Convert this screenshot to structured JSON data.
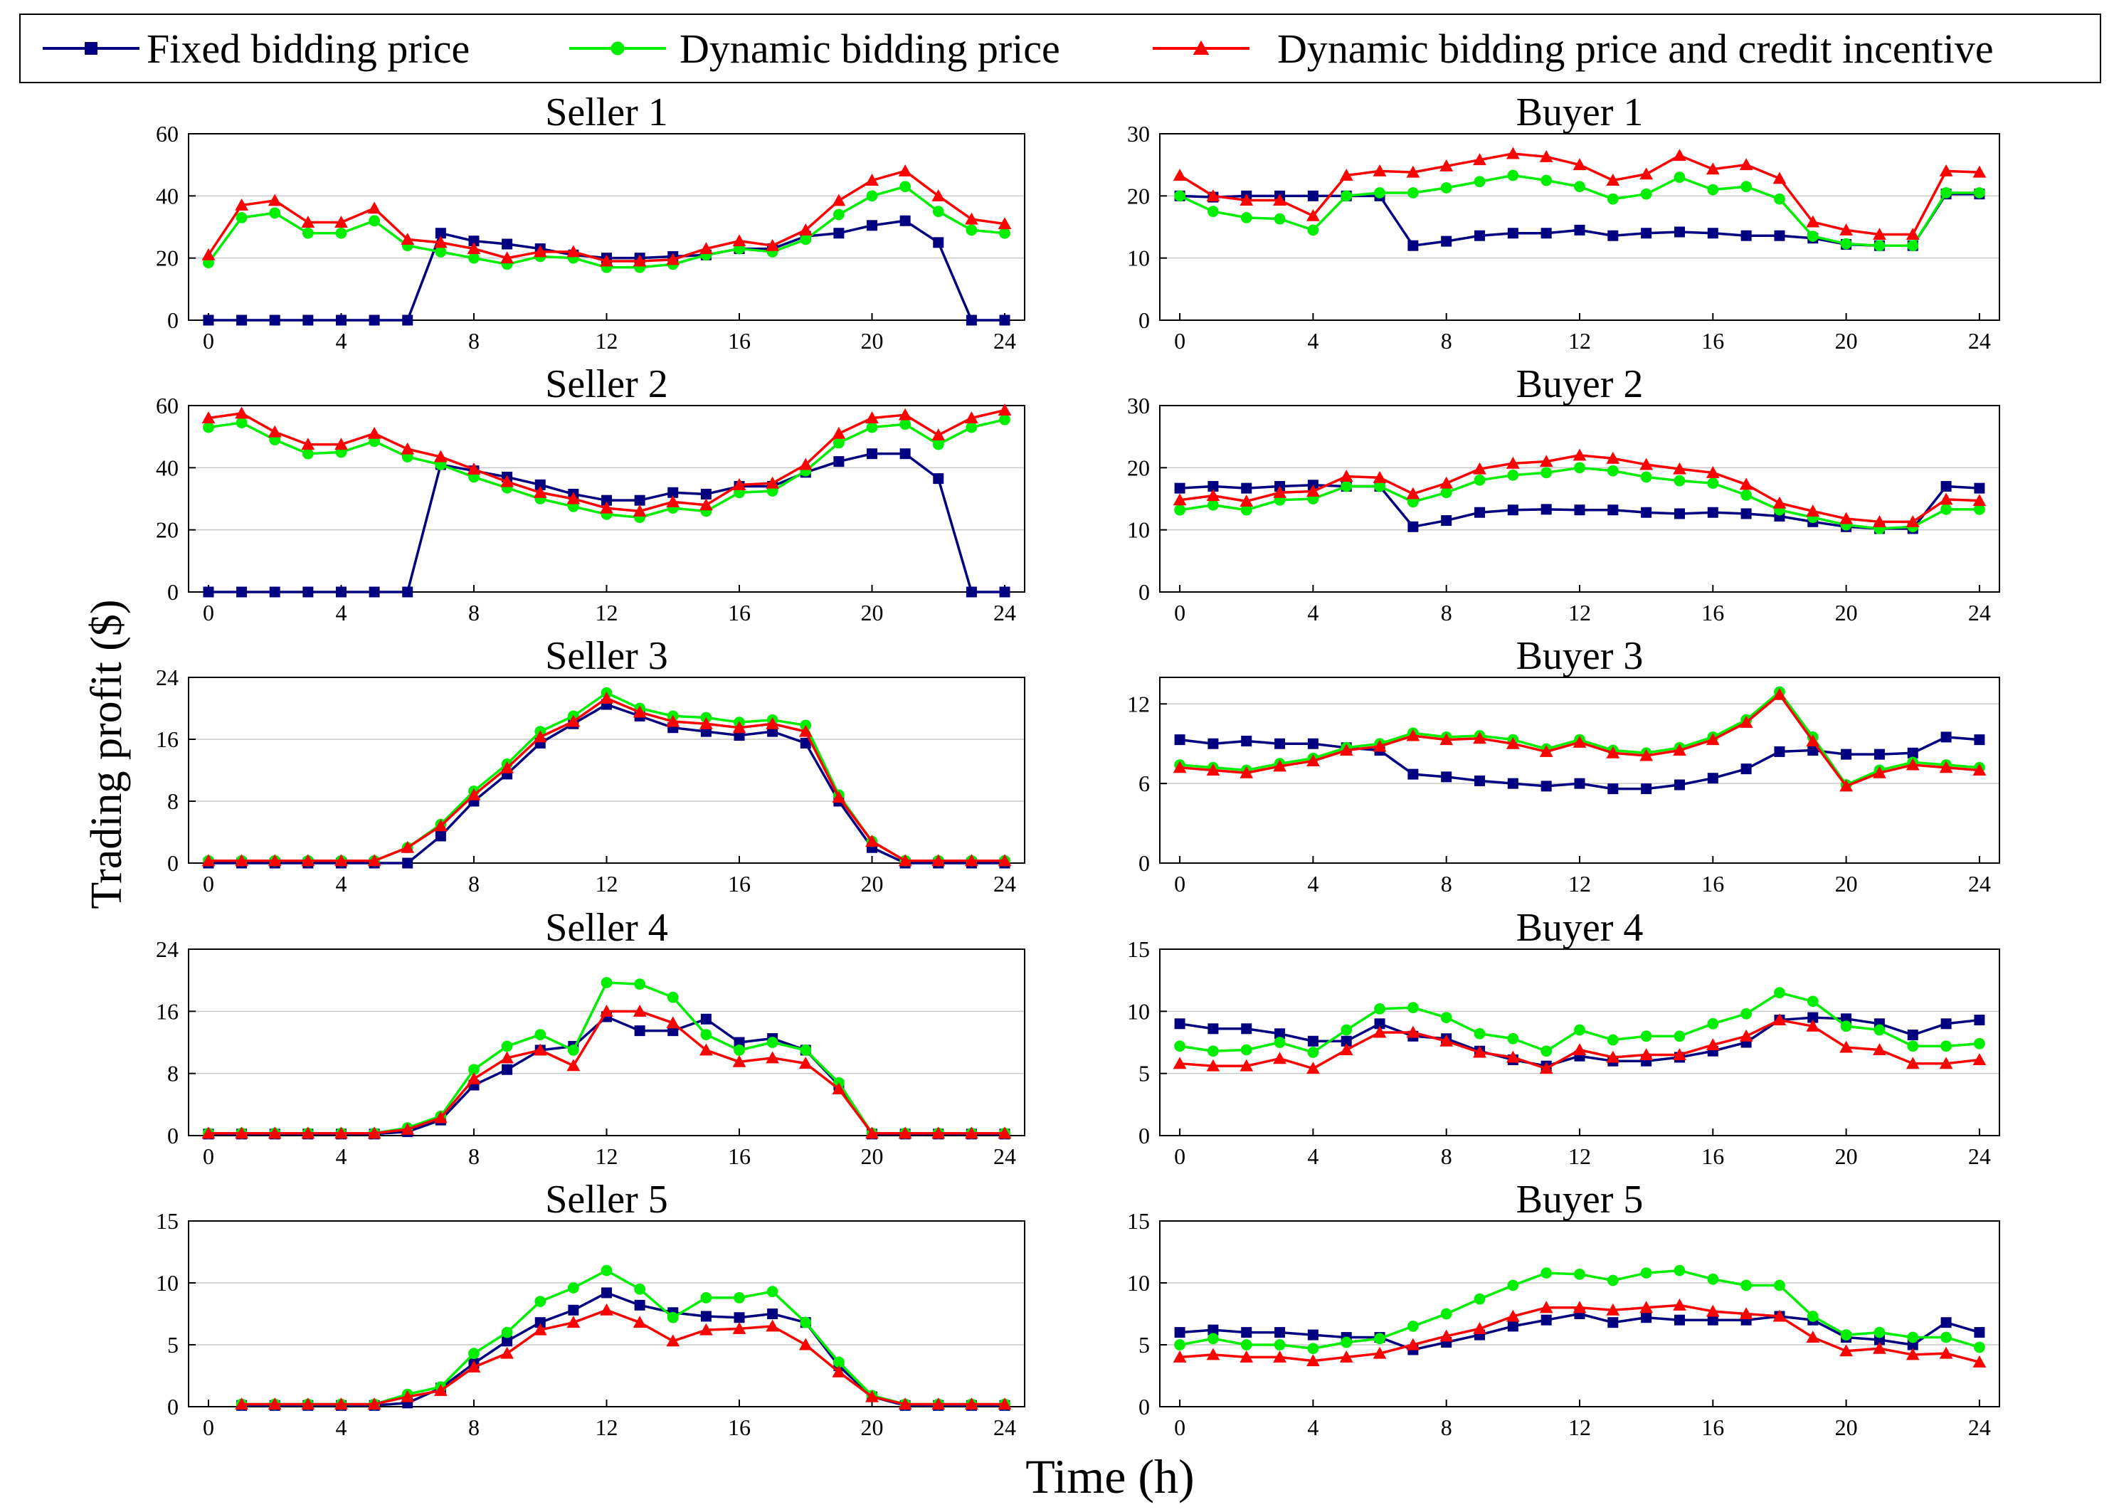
{
  "legend": {
    "entries": [
      {
        "label": "Fixed bidding price",
        "color": "#000080",
        "marker": "square"
      },
      {
        "label": "Dynamic bidding price",
        "color": "#00ee00",
        "marker": "circle"
      },
      {
        "label": "Dynamic bidding price and credit incentive",
        "color": "#ff0000",
        "marker": "triangle"
      }
    ]
  },
  "axes": {
    "xlabel": "Time (h)",
    "ylabel": "Trading profit ($)"
  },
  "chart_data": [
    {
      "type": "line",
      "title": "Seller 1",
      "ylim": [
        0,
        60
      ],
      "yticks": [
        0,
        20,
        40,
        60
      ],
      "xlim": [
        0,
        24
      ],
      "xticks": [
        0,
        4,
        8,
        12,
        16,
        20,
        24
      ],
      "x_start": 0,
      "series": [
        {
          "name": "Fixed bidding price",
          "values": [
            0,
            0,
            0,
            0,
            0,
            0,
            0,
            28,
            25.5,
            24.5,
            23,
            21,
            20,
            20,
            20.5,
            21,
            23,
            23,
            27,
            28,
            30.5,
            32,
            25,
            0,
            0
          ]
        },
        {
          "name": "Dynamic bidding price",
          "values": [
            18.5,
            33,
            34.5,
            28,
            28,
            32,
            24,
            22,
            20,
            18,
            20.5,
            20,
            17,
            17,
            18,
            21,
            23,
            22,
            26,
            34,
            40,
            43,
            35,
            29,
            28
          ]
        },
        {
          "name": "Dynamic bidding price and credit incentive",
          "values": [
            21,
            37,
            38.5,
            31.5,
            31.5,
            36,
            26,
            25,
            23,
            20,
            22,
            22,
            19,
            19,
            19.5,
            23,
            25.5,
            24,
            29,
            38.5,
            45,
            48,
            40,
            32.5,
            31
          ]
        }
      ]
    },
    {
      "type": "line",
      "title": "Buyer 1",
      "ylim": [
        0,
        30
      ],
      "yticks": [
        0,
        10,
        20,
        30
      ],
      "xlim": [
        0,
        24
      ],
      "xticks": [
        0,
        4,
        8,
        12,
        16,
        20,
        24
      ],
      "x_start": 0,
      "series": [
        {
          "name": "Fixed bidding price",
          "values": [
            20,
            19.8,
            20,
            20,
            20,
            20,
            20,
            12,
            12.7,
            13.6,
            14,
            14,
            14.5,
            13.6,
            14,
            14.2,
            14,
            13.6,
            13.6,
            13.2,
            12.2,
            12,
            12,
            20.3,
            20.3
          ]
        },
        {
          "name": "Dynamic bidding price",
          "values": [
            20,
            17.5,
            16.5,
            16.3,
            14.5,
            20,
            20.5,
            20.5,
            21.3,
            22.3,
            23.3,
            22.5,
            21.5,
            19.5,
            20.3,
            23,
            21,
            21.5,
            19.5,
            13.5,
            12.3,
            12,
            12,
            20.5,
            20.5
          ]
        },
        {
          "name": "Dynamic bidding price and credit incentive",
          "values": [
            23.3,
            20,
            19.3,
            19.3,
            16.8,
            23.3,
            24,
            23.8,
            24.8,
            25.8,
            26.8,
            26.3,
            25,
            22.5,
            23.5,
            26.5,
            24.3,
            25,
            22.8,
            15.8,
            14.5,
            13.8,
            13.8,
            24,
            23.8
          ]
        }
      ]
    },
    {
      "type": "line",
      "title": "Seller 2",
      "ylim": [
        0,
        60
      ],
      "yticks": [
        0,
        20,
        40,
        60
      ],
      "xlim": [
        0,
        24
      ],
      "xticks": [
        0,
        4,
        8,
        12,
        16,
        20,
        24
      ],
      "x_start": 0,
      "series": [
        {
          "name": "Fixed bidding price",
          "values": [
            0,
            0,
            0,
            0,
            0,
            0,
            0,
            41,
            39,
            37,
            34.5,
            31.5,
            29.5,
            29.5,
            32,
            31.5,
            34,
            34,
            38.5,
            42,
            44.5,
            44.5,
            36.5,
            0,
            0
          ]
        },
        {
          "name": "Dynamic bidding price",
          "values": [
            53,
            54.5,
            49,
            44.5,
            45,
            48.5,
            43.5,
            41,
            37,
            33.5,
            30,
            27.5,
            25,
            24,
            27,
            26,
            32,
            32.5,
            39,
            48,
            53,
            54,
            47.5,
            53,
            55.5
          ]
        },
        {
          "name": "Dynamic bidding price and credit incentive",
          "values": [
            56,
            57.5,
            51.5,
            47.5,
            47.5,
            51,
            46,
            43.5,
            39.5,
            35.5,
            32,
            30,
            27,
            26,
            29,
            28,
            34.5,
            35,
            41,
            51,
            56,
            57,
            50.5,
            56,
            58.5
          ]
        }
      ]
    },
    {
      "type": "line",
      "title": "Buyer 2",
      "ylim": [
        0,
        30
      ],
      "yticks": [
        0,
        10,
        20,
        30
      ],
      "xlim": [
        0,
        24
      ],
      "xticks": [
        0,
        4,
        8,
        12,
        16,
        20,
        24
      ],
      "x_start": 0,
      "series": [
        {
          "name": "Fixed bidding price",
          "values": [
            16.7,
            17,
            16.7,
            17,
            17.2,
            17,
            17,
            10.5,
            11.5,
            12.8,
            13.2,
            13.3,
            13.2,
            13.2,
            12.8,
            12.6,
            12.8,
            12.6,
            12.2,
            11.3,
            10.5,
            10.2,
            10.2,
            17,
            16.7
          ]
        },
        {
          "name": "Dynamic bidding price",
          "values": [
            13.2,
            14,
            13.2,
            14.8,
            15,
            17,
            17,
            14.5,
            16,
            18,
            18.8,
            19.2,
            20,
            19.5,
            18.5,
            17.9,
            17.5,
            15.6,
            13.2,
            12,
            10.8,
            10.2,
            10.5,
            13.3,
            13.3
          ]
        },
        {
          "name": "Dynamic bidding price and credit incentive",
          "values": [
            14.8,
            15.5,
            14.6,
            16,
            16.2,
            18.6,
            18.4,
            15.8,
            17.5,
            19.8,
            20.7,
            21,
            22,
            21.5,
            20.5,
            19.8,
            19.2,
            17.3,
            14.3,
            13,
            11.8,
            11.3,
            11.3,
            14.9,
            14.7
          ]
        }
      ]
    },
    {
      "type": "line",
      "title": "Seller 3",
      "ylim": [
        0,
        24
      ],
      "yticks": [
        0,
        8,
        16,
        24
      ],
      "xlim": [
        0,
        24
      ],
      "xticks": [
        0,
        4,
        8,
        12,
        16,
        20,
        24
      ],
      "x_start": 0,
      "series": [
        {
          "name": "Fixed bidding price",
          "values": [
            0,
            0,
            0,
            0,
            0,
            0,
            0,
            3.5,
            8,
            11.5,
            15.5,
            18,
            20.5,
            19,
            17.5,
            17,
            16.5,
            17,
            15.5,
            8,
            2,
            0,
            0,
            0,
            0
          ]
        },
        {
          "name": "Dynamic bidding price",
          "values": [
            0.3,
            0.3,
            0.3,
            0.3,
            0.3,
            0.3,
            2,
            5,
            9.3,
            12.8,
            17,
            19,
            22,
            20,
            19,
            18.8,
            18.2,
            18.5,
            17.8,
            8.8,
            2.8,
            0.3,
            0.3,
            0.3,
            0.3
          ]
        },
        {
          "name": "Dynamic bidding price and credit incentive",
          "values": [
            0.3,
            0.3,
            0.3,
            0.3,
            0.3,
            0.3,
            2,
            4.8,
            8.8,
            12.3,
            16.3,
            18.3,
            21.3,
            19.5,
            18.3,
            18,
            17.5,
            18,
            17,
            8.5,
            2.8,
            0.3,
            0.3,
            0.3,
            0.3
          ]
        }
      ]
    },
    {
      "type": "line",
      "title": "Buyer 3",
      "ylim": [
        0,
        14
      ],
      "yticks": [
        0,
        6,
        12
      ],
      "xlim": [
        0,
        24
      ],
      "xticks": [
        0,
        4,
        8,
        12,
        16,
        20,
        24
      ],
      "x_start": 0,
      "series": [
        {
          "name": "Fixed bidding price",
          "values": [
            9.3,
            9,
            9.2,
            9,
            9,
            8.7,
            8.5,
            6.7,
            6.5,
            6.2,
            6,
            5.8,
            6,
            5.6,
            5.6,
            5.9,
            6.4,
            7.1,
            8.4,
            8.5,
            8.2,
            8.2,
            8.3,
            9.5,
            9.3
          ]
        },
        {
          "name": "Dynamic bidding price",
          "values": [
            7.4,
            7.2,
            7,
            7.5,
            7.9,
            8.7,
            9,
            9.8,
            9.5,
            9.6,
            9.3,
            8.6,
            9.3,
            8.5,
            8.3,
            8.7,
            9.5,
            10.8,
            12.9,
            9.5,
            5.9,
            7,
            7.6,
            7.4,
            7.2
          ]
        },
        {
          "name": "Dynamic bidding price and credit incentive",
          "values": [
            7.2,
            7,
            6.8,
            7.3,
            7.7,
            8.5,
            8.8,
            9.6,
            9.3,
            9.4,
            9,
            8.4,
            9.1,
            8.3,
            8.1,
            8.5,
            9.3,
            10.6,
            12.7,
            9.2,
            5.8,
            6.8,
            7.4,
            7.2,
            7
          ]
        }
      ]
    },
    {
      "type": "line",
      "title": "Seller 4",
      "ylim": [
        0,
        24
      ],
      "yticks": [
        0,
        8,
        16,
        24
      ],
      "xlim": [
        0,
        24
      ],
      "xticks": [
        0,
        4,
        8,
        12,
        16,
        20,
        24
      ],
      "x_start": 0,
      "series": [
        {
          "name": "Fixed bidding price",
          "values": [
            0.2,
            0.2,
            0.2,
            0.2,
            0.2,
            0.2,
            0.5,
            2,
            6.5,
            8.5,
            11,
            11.5,
            15.3,
            13.5,
            13.5,
            15,
            12,
            12.5,
            11,
            6.5,
            0.2,
            0.2,
            0.2,
            0.2,
            0.2
          ]
        },
        {
          "name": "Dynamic bidding price",
          "values": [
            0.3,
            0.3,
            0.3,
            0.3,
            0.3,
            0.3,
            1,
            2.5,
            8.5,
            11.5,
            13,
            11,
            19.7,
            19.5,
            17.8,
            13,
            11,
            12,
            11,
            6.8,
            0.3,
            0.3,
            0.3,
            0.3,
            0.3
          ]
        },
        {
          "name": "Dynamic bidding price and credit incentive",
          "values": [
            0.3,
            0.3,
            0.3,
            0.3,
            0.3,
            0.3,
            0.8,
            2.3,
            7.3,
            10,
            11,
            9,
            16,
            16,
            14.5,
            11,
            9.5,
            10,
            9.3,
            6,
            0.3,
            0.3,
            0.3,
            0.3,
            0.3
          ]
        }
      ]
    },
    {
      "type": "line",
      "title": "Buyer 4",
      "ylim": [
        0,
        15
      ],
      "yticks": [
        0,
        5,
        10,
        15
      ],
      "xlim": [
        0,
        24
      ],
      "xticks": [
        0,
        4,
        8,
        12,
        16,
        20,
        24
      ],
      "x_start": 0,
      "series": [
        {
          "name": "Fixed bidding price",
          "values": [
            9,
            8.6,
            8.6,
            8.2,
            7.6,
            7.6,
            9,
            8,
            7.8,
            6.8,
            6.1,
            5.6,
            6.4,
            6,
            6,
            6.3,
            6.8,
            7.5,
            9.3,
            9.5,
            9.4,
            9,
            8.1,
            9,
            9.3
          ]
        },
        {
          "name": "Dynamic bidding price",
          "values": [
            7.2,
            6.8,
            6.9,
            7.5,
            6.7,
            8.5,
            10.2,
            10.3,
            9.5,
            8.2,
            7.8,
            6.8,
            8.5,
            7.7,
            8,
            8,
            9,
            9.8,
            11.5,
            10.8,
            8.8,
            8.5,
            7.2,
            7.2,
            7.4
          ]
        },
        {
          "name": "Dynamic bidding price and credit incentive",
          "values": [
            5.8,
            5.6,
            5.6,
            6.2,
            5.4,
            6.9,
            8.3,
            8.3,
            7.6,
            6.7,
            6.3,
            5.4,
            6.9,
            6.3,
            6.5,
            6.5,
            7.3,
            8,
            9.3,
            8.8,
            7.1,
            6.9,
            5.8,
            5.8,
            6.1
          ]
        }
      ]
    },
    {
      "type": "line",
      "title": "Seller 5",
      "ylim": [
        0,
        15
      ],
      "yticks": [
        0,
        5,
        10,
        15
      ],
      "xlim": [
        0,
        24
      ],
      "xticks": [
        0,
        4,
        8,
        12,
        16,
        20,
        24
      ],
      "x_start": 1,
      "series": [
        {
          "name": "Fixed bidding price",
          "values": [
            0.1,
            0.1,
            0.1,
            0.1,
            0.1,
            0.3,
            1.5,
            3.5,
            5.3,
            6.8,
            7.8,
            9.2,
            8.2,
            7.6,
            7.3,
            7.2,
            7.5,
            6.8,
            3.3,
            0.8,
            0.1,
            0.1,
            0.1,
            0.1
          ]
        },
        {
          "name": "Dynamic bidding price",
          "values": [
            0.2,
            0.2,
            0.2,
            0.2,
            0.2,
            1,
            1.6,
            4.3,
            6,
            8.5,
            9.6,
            11,
            9.5,
            7.2,
            8.8,
            8.8,
            9.3,
            6.8,
            3.6,
            0.9,
            0.2,
            0.2,
            0.2,
            0.2
          ]
        },
        {
          "name": "Dynamic bidding price and credit incentive",
          "values": [
            0.2,
            0.2,
            0.2,
            0.2,
            0.2,
            0.8,
            1.3,
            3.2,
            4.3,
            6.2,
            6.8,
            7.8,
            6.8,
            5.3,
            6.2,
            6.3,
            6.5,
            5,
            2.8,
            0.8,
            0.2,
            0.2,
            0.2,
            0.2
          ]
        }
      ]
    },
    {
      "type": "line",
      "title": "Buyer 5",
      "ylim": [
        0,
        15
      ],
      "yticks": [
        0,
        5,
        10,
        15
      ],
      "xlim": [
        0,
        24
      ],
      "xticks": [
        0,
        4,
        8,
        12,
        16,
        20,
        24
      ],
      "x_start": 0,
      "series": [
        {
          "name": "Fixed bidding price",
          "values": [
            6,
            6.2,
            6,
            6,
            5.8,
            5.6,
            5.6,
            4.6,
            5.2,
            5.8,
            6.5,
            7,
            7.5,
            6.8,
            7.2,
            7,
            7,
            7,
            7.3,
            7,
            5.6,
            5.4,
            5,
            6.8,
            6
          ]
        },
        {
          "name": "Dynamic bidding price",
          "values": [
            5,
            5.5,
            5,
            5,
            4.7,
            5.2,
            5.5,
            6.5,
            7.5,
            8.7,
            9.8,
            10.8,
            10.7,
            10.2,
            10.8,
            11,
            10.3,
            9.8,
            9.8,
            7.3,
            5.8,
            6,
            5.6,
            5.6,
            4.8
          ]
        },
        {
          "name": "Dynamic bidding price and credit incentive",
          "values": [
            4,
            4.2,
            4,
            4,
            3.7,
            4,
            4.3,
            5,
            5.7,
            6.3,
            7.3,
            8,
            8,
            7.8,
            8,
            8.2,
            7.7,
            7.5,
            7.3,
            5.6,
            4.5,
            4.7,
            4.2,
            4.3,
            3.6
          ]
        }
      ]
    }
  ]
}
